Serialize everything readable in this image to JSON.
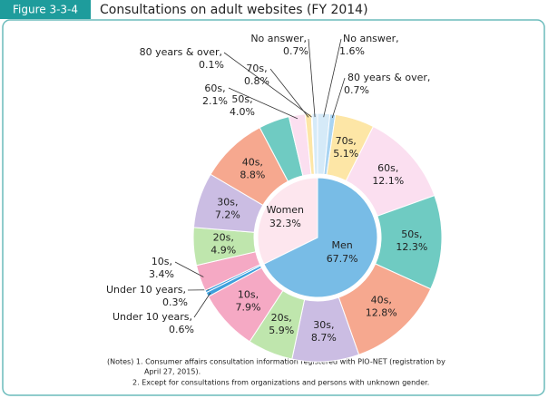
{
  "chart_data": {
    "type": "donut",
    "figure_label": "Figure 3-3-4",
    "title": "Consultations on adult websites (FY 2014)",
    "inner": {
      "categories": [
        "Men",
        "Women"
      ],
      "values": [
        67.7,
        32.3
      ],
      "value_labels": [
        "67.7%",
        "32.3%"
      ],
      "colors": [
        "#78bce6",
        "#fde6ee"
      ]
    },
    "outer": {
      "categories": [
        "No answer,",
        "80 years & over,",
        "70s,",
        "60s,",
        "50s,",
        "40s,",
        "30s,",
        "20s,",
        "10s,",
        "Under 10 years,",
        "Under 10 years,",
        "10s,",
        "20s,",
        "30s,",
        "40s,",
        "50s,",
        "60s,",
        "70s,",
        "80 years & over,",
        "No answer,"
      ],
      "values": [
        1.6,
        0.7,
        5.1,
        12.1,
        12.3,
        12.8,
        8.7,
        5.9,
        7.9,
        0.6,
        0.3,
        3.4,
        4.9,
        7.2,
        8.8,
        4.0,
        2.1,
        0.8,
        0.1,
        0.7
      ],
      "value_labels": [
        "1.6%",
        "0.7%",
        "5.1%",
        "12.1%",
        "12.3%",
        "12.8%",
        "8.7%",
        "5.9%",
        "7.9%",
        "0.6%",
        "0.3%",
        "3.4%",
        "4.9%",
        "7.2%",
        "8.8%",
        "4.0%",
        "2.1%",
        "0.8%",
        "0.1%",
        "0.7%"
      ],
      "colors": [
        "#d5eaf8",
        "#a9d4f2",
        "#fde6a6",
        "#fbdff0",
        "#6fcbc2",
        "#f6a88f",
        "#cbbde3",
        "#bfe6ad",
        "#f5a9c4",
        "#3f9fdc",
        "#3f9fdc",
        "#f5a9c4",
        "#bfe6ad",
        "#cbbde3",
        "#f6a88f",
        "#6fcbc2",
        "#fbdff0",
        "#fde6a6",
        "#a9d4f2",
        "#d5eaf8"
      ]
    },
    "notes": [
      "(Notes) 1. Consumer affairs consultation information registered with PIO-NET (registration by",
      "April 27, 2015).",
      "2. Except for consultations from organizations and persons with unknown gender."
    ]
  }
}
